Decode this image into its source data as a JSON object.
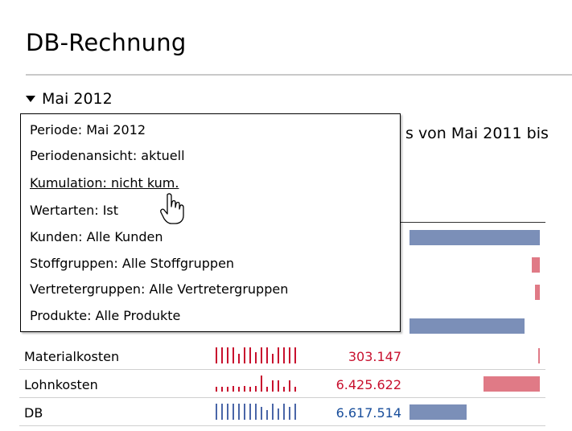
{
  "page": {
    "title": "DB-Rechnung",
    "period_toggle_label": "Mai 2012",
    "range_text": "s von Mai 2011 bis"
  },
  "tooltip": {
    "lines": [
      "Periode: Mai 2012",
      "Periodenansicht: aktuell",
      "Kumulation: nicht kum.",
      "Wertarten: Ist",
      "Kunden: Alle Kunden",
      "Stoffgruppen: Alle Stoffgruppen",
      "Vertretergruppen: Alle Vertretergruppen",
      "Produkte: Alle Produkte"
    ]
  },
  "table": {
    "rows": [
      {
        "label": "Materialkosten",
        "value": "303.147",
        "value_color": "#c8102e",
        "bar_color": "#e07a86",
        "bar_fraction": 0.01
      },
      {
        "label": "Lohnkosten",
        "value": "6.425.622",
        "value_color": "#c8102e",
        "bar_color": "#e07a86",
        "bar_fraction": 0.43
      },
      {
        "label": "DB",
        "value": "6.617.514",
        "value_color": "#1a4f9c",
        "bar_color": "#7b8fb8",
        "bar_fraction": 0.44
      }
    ],
    "hidden_bars": [
      {
        "color": "#7b8fb8",
        "fraction": 1.0
      },
      {
        "color": "#e07a86",
        "fraction": 0.06
      },
      {
        "color": "#e07a86",
        "fraction": 0.04
      },
      {
        "color": "#7b8fb8",
        "fraction": 0.88
      }
    ]
  },
  "colors": {
    "spark_blue": "#4a66a8",
    "spark_red": "#c8102e"
  }
}
